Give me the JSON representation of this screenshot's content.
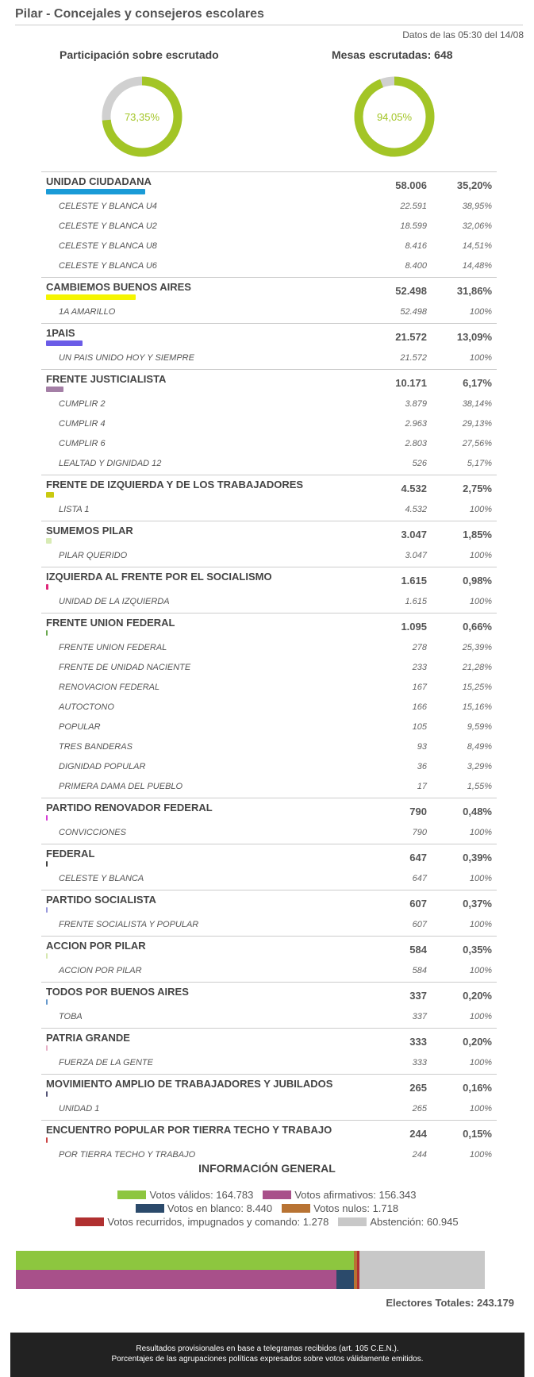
{
  "header": {
    "title": "Pilar - Concejales y consejeros escolares",
    "updated": "Datos de las 05:30 del 14/08"
  },
  "gauges": {
    "participation": {
      "label": "Participación sobre escrutado",
      "value": 73.35,
      "text": "73,35%"
    },
    "tables": {
      "label": "Mesas escrutadas: 648",
      "value": 94.05,
      "text": "94,05%"
    }
  },
  "colors": {
    "gauge_fill": "#a3c526",
    "gauge_rest": "#d0d0d0"
  },
  "parties": [
    {
      "name": "UNIDAD CIUDADANA",
      "votes": "58.006",
      "pct": "35,20%",
      "pct_value": 35.2,
      "color": "#1a9bd7",
      "lists": [
        {
          "name": "CELESTE Y BLANCA U4",
          "votes": "22.591",
          "pct": "38,95%"
        },
        {
          "name": "CELESTE Y BLANCA U2",
          "votes": "18.599",
          "pct": "32,06%"
        },
        {
          "name": "CELESTE Y BLANCA U8",
          "votes": "8.416",
          "pct": "14,51%"
        },
        {
          "name": "CELESTE Y BLANCA U6",
          "votes": "8.400",
          "pct": "14,48%"
        }
      ]
    },
    {
      "name": "CAMBIEMOS BUENOS AIRES",
      "votes": "52.498",
      "pct": "31,86%",
      "pct_value": 31.86,
      "color": "#f5f500",
      "lists": [
        {
          "name": "1A AMARILLO",
          "votes": "52.498",
          "pct": "100%"
        }
      ]
    },
    {
      "name": "1PAIS",
      "votes": "21.572",
      "pct": "13,09%",
      "pct_value": 13.09,
      "color": "#6b5ce7",
      "lists": [
        {
          "name": "UN PAIS UNIDO HOY Y SIEMPRE",
          "votes": "21.572",
          "pct": "100%"
        }
      ]
    },
    {
      "name": "FRENTE JUSTICIALISTA",
      "votes": "10.171",
      "pct": "6,17%",
      "pct_value": 6.17,
      "color": "#a47fa6",
      "lists": [
        {
          "name": "CUMPLIR 2",
          "votes": "3.879",
          "pct": "38,14%"
        },
        {
          "name": "CUMPLIR 4",
          "votes": "2.963",
          "pct": "29,13%"
        },
        {
          "name": "CUMPLIR 6",
          "votes": "2.803",
          "pct": "27,56%"
        },
        {
          "name": "LEALTAD Y DIGNIDAD 12",
          "votes": "526",
          "pct": "5,17%"
        }
      ]
    },
    {
      "name": "FRENTE DE IZQUIERDA Y DE LOS TRABAJADORES",
      "votes": "4.532",
      "pct": "2,75%",
      "pct_value": 2.75,
      "color": "#c9c910",
      "lists": [
        {
          "name": "LISTA 1",
          "votes": "4.532",
          "pct": "100%"
        }
      ]
    },
    {
      "name": "SUMEMOS PILAR",
      "votes": "3.047",
      "pct": "1,85%",
      "pct_value": 1.85,
      "color": "#d8ebb5",
      "lists": [
        {
          "name": "PILAR QUERIDO",
          "votes": "3.047",
          "pct": "100%"
        }
      ]
    },
    {
      "name": "IZQUIERDA AL FRENTE POR EL SOCIALISMO",
      "votes": "1.615",
      "pct": "0,98%",
      "pct_value": 0.98,
      "color": "#e0287a",
      "lists": [
        {
          "name": "UNIDAD DE LA IZQUIERDA",
          "votes": "1.615",
          "pct": "100%"
        }
      ]
    },
    {
      "name": "FRENTE UNION FEDERAL",
      "votes": "1.095",
      "pct": "0,66%",
      "pct_value": 0.66,
      "color": "#6aa84f",
      "lists": [
        {
          "name": "FRENTE UNION FEDERAL",
          "votes": "278",
          "pct": "25,39%"
        },
        {
          "name": "FRENTE DE UNIDAD NACIENTE",
          "votes": "233",
          "pct": "21,28%"
        },
        {
          "name": "RENOVACION FEDERAL",
          "votes": "167",
          "pct": "15,25%"
        },
        {
          "name": "AUTOCTONO",
          "votes": "166",
          "pct": "15,16%"
        },
        {
          "name": "POPULAR",
          "votes": "105",
          "pct": "9,59%"
        },
        {
          "name": "TRES BANDERAS",
          "votes": "93",
          "pct": "8,49%"
        },
        {
          "name": "DIGNIDAD POPULAR",
          "votes": "36",
          "pct": "3,29%"
        },
        {
          "name": "PRIMERA DAMA DEL PUEBLO",
          "votes": "17",
          "pct": "1,55%"
        }
      ]
    },
    {
      "name": "PARTIDO RENOVADOR FEDERAL",
      "votes": "790",
      "pct": "0,48%",
      "pct_value": 0.48,
      "color": "#d63bd6",
      "lists": [
        {
          "name": "CONVICCIONES",
          "votes": "790",
          "pct": "100%"
        }
      ]
    },
    {
      "name": "FEDERAL",
      "votes": "647",
      "pct": "0,39%",
      "pct_value": 0.39,
      "color": "#444444",
      "lists": [
        {
          "name": "CELESTE Y BLANCA",
          "votes": "647",
          "pct": "100%"
        }
      ]
    },
    {
      "name": "PARTIDO SOCIALISTA",
      "votes": "607",
      "pct": "0,37%",
      "pct_value": 0.37,
      "color": "#9999dd",
      "lists": [
        {
          "name": "FRENTE SOCIALISTA Y POPULAR",
          "votes": "607",
          "pct": "100%"
        }
      ]
    },
    {
      "name": "ACCION POR PILAR",
      "votes": "584",
      "pct": "0,35%",
      "pct_value": 0.35,
      "color": "#d6e8b0",
      "lists": [
        {
          "name": "ACCION POR PILAR",
          "votes": "584",
          "pct": "100%"
        }
      ]
    },
    {
      "name": "TODOS POR BUENOS AIRES",
      "votes": "337",
      "pct": "0,20%",
      "pct_value": 0.2,
      "color": "#6699cc",
      "lists": [
        {
          "name": "TOBA",
          "votes": "337",
          "pct": "100%"
        }
      ]
    },
    {
      "name": "PATRIA GRANDE",
      "votes": "333",
      "pct": "0,20%",
      "pct_value": 0.2,
      "color": "#e8b0c8",
      "lists": [
        {
          "name": "FUERZA DE LA GENTE",
          "votes": "333",
          "pct": "100%"
        }
      ]
    },
    {
      "name": "MOVIMIENTO AMPLIO DE TRABAJADORES Y JUBILADOS",
      "votes": "265",
      "pct": "0,16%",
      "pct_value": 0.16,
      "color": "#555577",
      "lists": [
        {
          "name": "UNIDAD 1",
          "votes": "265",
          "pct": "100%"
        }
      ]
    },
    {
      "name": "ENCUENTRO POPULAR POR TIERRA TECHO Y TRABAJO",
      "votes": "244",
      "pct": "0,15%",
      "pct_value": 0.15,
      "color": "#cc4444",
      "lists": [
        {
          "name": "POR TIERRA TECHO Y TRABAJO",
          "votes": "244",
          "pct": "100%"
        }
      ]
    }
  ],
  "info": {
    "title": "INFORMACIÓN GENERAL",
    "legend": [
      {
        "label": "Votos válidos: 164.783",
        "color": "#8dc63f",
        "value": 164783
      },
      {
        "label": "Votos afirmativos: 156.343",
        "color": "#a8508a",
        "value": 156343
      },
      {
        "label": "Votos en blanco: 8.440",
        "color": "#2b4a6b",
        "value": 8440
      },
      {
        "label": "Votos nulos: 1.718",
        "color": "#b87333",
        "value": 1718
      },
      {
        "label": "Votos recurridos, impugnados y comando: 1.278",
        "color": "#b03030",
        "value": 1278
      },
      {
        "label": "Abstención: 60.945",
        "color": "#c8c8c8",
        "value": 60945
      }
    ],
    "electors": "Electores Totales: 243.179",
    "electors_value": 243179
  },
  "footer": {
    "line1": "Resultados provisionales en base a telegramas recibidos (art. 105 C.E.N.).",
    "line2": "Porcentajes de las agrupaciones políticas expresados sobre votos válidamente emitidos."
  }
}
